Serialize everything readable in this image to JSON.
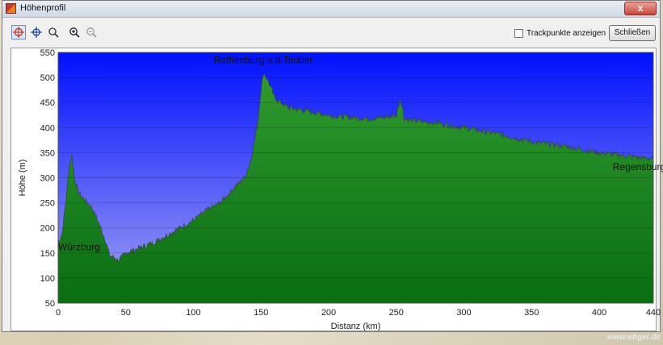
{
  "window": {
    "title": "Höhenprofil",
    "close_glyph": "x"
  },
  "toolbar": {
    "tools": [
      {
        "name": "select-target-icon"
      },
      {
        "name": "crosshair-icon"
      },
      {
        "name": "zoom-area-icon"
      },
      {
        "name": "zoom-in-icon"
      },
      {
        "name": "zoom-out-icon"
      }
    ],
    "trackpoints_label": "Trackpunkte anzeigen",
    "trackpoints_checked": false,
    "close_label": "Schließen"
  },
  "watermark": "www.ebgei.de",
  "chart_data": {
    "type": "area",
    "title": "",
    "xlabel": "Distanz   (km)",
    "ylabel": "Höhe (m)",
    "xlim": [
      0,
      440
    ],
    "ylim": [
      50,
      550
    ],
    "x_ticks": [
      0,
      50,
      100,
      150,
      200,
      250,
      300,
      350,
      400,
      440
    ],
    "y_ticks": [
      50,
      100,
      150,
      200,
      250,
      300,
      350,
      400,
      450,
      500,
      550
    ],
    "grid": true,
    "x": [
      0,
      3,
      6,
      8,
      10,
      12,
      15,
      20,
      25,
      30,
      35,
      38,
      42,
      45,
      50,
      55,
      60,
      65,
      70,
      80,
      90,
      100,
      110,
      120,
      130,
      138,
      142,
      145,
      148,
      150,
      152,
      155,
      160,
      165,
      170,
      180,
      190,
      200,
      210,
      220,
      230,
      240,
      250,
      253,
      256,
      260,
      270,
      280,
      290,
      300,
      310,
      320,
      330,
      340,
      350,
      360,
      370,
      380,
      390,
      400,
      410,
      420,
      430,
      440
    ],
    "y": [
      170,
      190,
      260,
      320,
      345,
      300,
      270,
      255,
      240,
      210,
      175,
      145,
      140,
      135,
      150,
      155,
      160,
      165,
      170,
      185,
      200,
      215,
      235,
      250,
      280,
      300,
      330,
      370,
      420,
      480,
      510,
      495,
      460,
      450,
      440,
      435,
      430,
      425,
      422,
      420,
      418,
      420,
      425,
      460,
      418,
      415,
      412,
      410,
      405,
      400,
      395,
      390,
      385,
      378,
      372,
      368,
      365,
      360,
      355,
      350,
      347,
      344,
      340,
      338
    ],
    "annotations": [
      {
        "text": "Würzburg",
        "x": 0,
        "y": 155
      },
      {
        "text": "Rothenburg o.d.Tauber",
        "x": 115,
        "y": 528
      },
      {
        "text": "Regensburg",
        "x": 410,
        "y": 315
      }
    ],
    "colors": {
      "sky_top": "#0010ff",
      "sky_bottom": "#a3a3f2",
      "terrain_top": "#2f9a2f",
      "terrain_bottom": "#0a6d12",
      "outline": "#3b3b3b"
    }
  }
}
